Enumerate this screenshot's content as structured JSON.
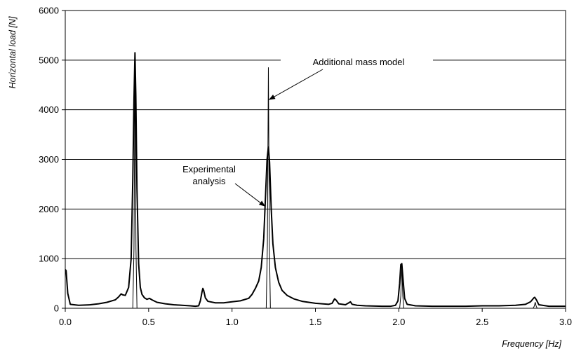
{
  "chart_data": {
    "type": "line",
    "title": "",
    "xlabel": "Frequency [Hz]",
    "ylabel": "Horizontal load [N]",
    "xlim": [
      0,
      3
    ],
    "ylim": [
      0,
      6000
    ],
    "grid": "horizontal",
    "x_ticks": [
      0,
      0.5,
      1,
      1.5,
      2,
      2.5,
      3
    ],
    "x_tick_labels": [
      "0.0",
      "0.5",
      "1.0",
      "1.5",
      "2.0",
      "2.5",
      "3.0"
    ],
    "y_ticks": [
      0,
      1000,
      2000,
      3000,
      4000,
      5000,
      6000
    ],
    "y_tick_labels": [
      "0",
      "1000",
      "2000",
      "3000",
      "4000",
      "5000",
      "6000"
    ],
    "annotations": [
      {
        "text_lines": [
          "Additional mass model"
        ],
        "points_to": {
          "x": 1.22,
          "y": 4200
        }
      },
      {
        "text_lines": [
          "Experimental",
          "analysis"
        ],
        "points_to": {
          "x": 1.2,
          "y": 2050
        }
      }
    ],
    "series": [
      {
        "line_width": 1,
        "points": [
          [
            0.0,
            0
          ],
          [
            0.405,
            0
          ],
          [
            0.412,
            1200
          ],
          [
            0.418,
            4700
          ],
          [
            0.424,
            1200
          ],
          [
            0.43,
            0
          ],
          [
            1.205,
            0
          ],
          [
            1.212,
            1300
          ],
          [
            1.218,
            4850
          ],
          [
            1.224,
            1300
          ],
          [
            1.23,
            0
          ],
          [
            2.005,
            0
          ],
          [
            2.012,
            250
          ],
          [
            2.018,
            880
          ],
          [
            2.024,
            250
          ],
          [
            2.03,
            0
          ],
          [
            2.805,
            0
          ],
          [
            2.812,
            40
          ],
          [
            2.818,
            120
          ],
          [
            2.824,
            40
          ],
          [
            2.83,
            0
          ],
          [
            3.0,
            0
          ]
        ]
      },
      {
        "line_width": 2,
        "points": [
          [
            0.0,
            780
          ],
          [
            0.005,
            760
          ],
          [
            0.015,
            300
          ],
          [
            0.03,
            80
          ],
          [
            0.08,
            60
          ],
          [
            0.15,
            70
          ],
          [
            0.2,
            90
          ],
          [
            0.25,
            120
          ],
          [
            0.3,
            170
          ],
          [
            0.32,
            230
          ],
          [
            0.335,
            290
          ],
          [
            0.345,
            270
          ],
          [
            0.36,
            260
          ],
          [
            0.38,
            420
          ],
          [
            0.395,
            1000
          ],
          [
            0.405,
            2600
          ],
          [
            0.412,
            4200
          ],
          [
            0.418,
            5150
          ],
          [
            0.423,
            4300
          ],
          [
            0.43,
            2400
          ],
          [
            0.44,
            900
          ],
          [
            0.45,
            420
          ],
          [
            0.46,
            280
          ],
          [
            0.475,
            210
          ],
          [
            0.49,
            180
          ],
          [
            0.505,
            200
          ],
          [
            0.52,
            170
          ],
          [
            0.55,
            120
          ],
          [
            0.6,
            90
          ],
          [
            0.65,
            70
          ],
          [
            0.7,
            60
          ],
          [
            0.75,
            50
          ],
          [
            0.78,
            40
          ],
          [
            0.8,
            50
          ],
          [
            0.81,
            150
          ],
          [
            0.82,
            330
          ],
          [
            0.825,
            400
          ],
          [
            0.83,
            360
          ],
          [
            0.84,
            210
          ],
          [
            0.855,
            140
          ],
          [
            0.9,
            110
          ],
          [
            0.95,
            110
          ],
          [
            1.0,
            130
          ],
          [
            1.05,
            150
          ],
          [
            1.1,
            200
          ],
          [
            1.12,
            280
          ],
          [
            1.14,
            400
          ],
          [
            1.16,
            550
          ],
          [
            1.175,
            820
          ],
          [
            1.19,
            1400
          ],
          [
            1.2,
            2200
          ],
          [
            1.21,
            3000
          ],
          [
            1.218,
            3250
          ],
          [
            1.225,
            2950
          ],
          [
            1.235,
            2000
          ],
          [
            1.245,
            1300
          ],
          [
            1.26,
            820
          ],
          [
            1.28,
            520
          ],
          [
            1.3,
            360
          ],
          [
            1.33,
            260
          ],
          [
            1.37,
            190
          ],
          [
            1.42,
            140
          ],
          [
            1.5,
            100
          ],
          [
            1.58,
            80
          ],
          [
            1.6,
            100
          ],
          [
            1.615,
            190
          ],
          [
            1.625,
            160
          ],
          [
            1.64,
            90
          ],
          [
            1.68,
            70
          ],
          [
            1.7,
            110
          ],
          [
            1.71,
            130
          ],
          [
            1.72,
            80
          ],
          [
            1.75,
            60
          ],
          [
            1.8,
            50
          ],
          [
            1.9,
            40
          ],
          [
            1.95,
            40
          ],
          [
            1.98,
            60
          ],
          [
            1.995,
            150
          ],
          [
            2.005,
            500
          ],
          [
            2.012,
            880
          ],
          [
            2.018,
            900
          ],
          [
            2.025,
            600
          ],
          [
            2.035,
            200
          ],
          [
            2.05,
            80
          ],
          [
            2.1,
            50
          ],
          [
            2.2,
            40
          ],
          [
            2.3,
            40
          ],
          [
            2.4,
            40
          ],
          [
            2.5,
            50
          ],
          [
            2.6,
            50
          ],
          [
            2.7,
            60
          ],
          [
            2.76,
            80
          ],
          [
            2.79,
            130
          ],
          [
            2.81,
            210
          ],
          [
            2.815,
            220
          ],
          [
            2.825,
            170
          ],
          [
            2.84,
            70
          ],
          [
            2.9,
            40
          ],
          [
            3.0,
            40
          ]
        ]
      }
    ]
  }
}
